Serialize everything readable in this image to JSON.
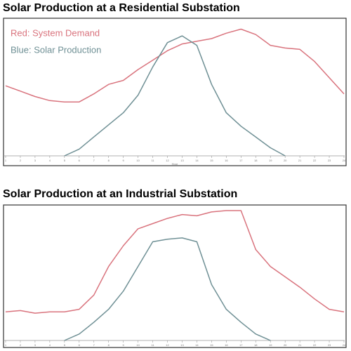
{
  "chart_data": [
    {
      "type": "line",
      "title": "Solar Production at a Residential Substation",
      "x_label": "Hour",
      "x": [
        1,
        2,
        3,
        4,
        5,
        6,
        7,
        8,
        9,
        10,
        11,
        12,
        13,
        14,
        15,
        16,
        17,
        18,
        19,
        20,
        21,
        22,
        23,
        24
      ],
      "xlim": [
        1,
        24
      ],
      "ylim": [
        0,
        100
      ],
      "xticks": [
        1,
        2,
        3,
        4,
        5,
        6,
        7,
        8,
        9,
        10,
        11,
        12,
        13,
        14,
        15,
        16,
        17,
        18,
        19,
        20,
        21,
        22,
        23,
        24
      ],
      "series": [
        {
          "name": "Red: System Demand",
          "color": "#d9737d",
          "values": [
            52,
            48,
            44,
            41,
            40,
            40,
            46,
            53,
            56,
            64,
            71,
            78,
            83,
            85,
            87,
            91,
            94,
            90,
            82,
            80,
            79,
            70,
            58,
            46
          ]
        },
        {
          "name": "Blue: Solar Production",
          "color": "#6f9095",
          "values": [
            null,
            null,
            null,
            null,
            0,
            5,
            14,
            23,
            32,
            45,
            66,
            84,
            89,
            82,
            53,
            32,
            22,
            14,
            6,
            0,
            null,
            null,
            null,
            null
          ]
        }
      ]
    },
    {
      "type": "line",
      "title": "Solar Production at an Industrial Substation",
      "x": [
        1,
        2,
        3,
        4,
        5,
        6,
        7,
        8,
        9,
        10,
        11,
        12,
        13,
        14,
        15,
        16,
        17,
        18,
        19,
        20,
        21,
        22,
        23,
        24
      ],
      "xlim": [
        1,
        24
      ],
      "ylim": [
        0,
        100
      ],
      "xticks": [
        1,
        2,
        3,
        4,
        5,
        6,
        7,
        8,
        9,
        10,
        11,
        12,
        13,
        14,
        15,
        16,
        17,
        18,
        19,
        20,
        21,
        22,
        23,
        24
      ],
      "series": [
        {
          "color": "#d9737d",
          "values": [
            22,
            23,
            21,
            22,
            22,
            24,
            35,
            57,
            73,
            86,
            90,
            94,
            97,
            96,
            99,
            100,
            100,
            70,
            57,
            49,
            41,
            32,
            24,
            22
          ]
        },
        {
          "color": "#6f9095",
          "values": [
            null,
            null,
            null,
            null,
            0,
            5,
            14,
            24,
            38,
            57,
            76,
            78,
            79,
            76,
            43,
            24,
            14,
            5,
            0,
            null,
            null,
            null,
            null,
            null
          ]
        }
      ]
    }
  ]
}
